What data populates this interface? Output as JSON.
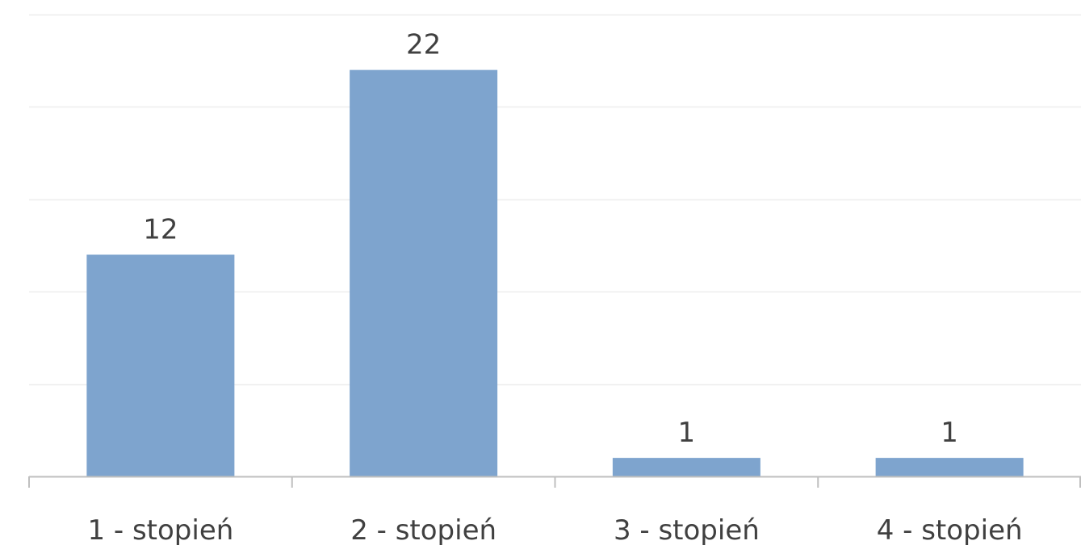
{
  "chart_data": {
    "type": "bar",
    "categories": [
      "1 - stopień",
      "2 - stopień",
      "3 - stopień",
      "4 - stopień"
    ],
    "values": [
      12,
      22,
      1,
      1
    ],
    "title": "",
    "xlabel": "",
    "ylabel": "",
    "ylim": [
      0,
      25
    ],
    "grid": true,
    "data_labels": true,
    "colors": {
      "bar": "#7ea4ce",
      "grid": "#eeeeee",
      "axis": "#bfbfbf",
      "text": "#404040"
    }
  }
}
